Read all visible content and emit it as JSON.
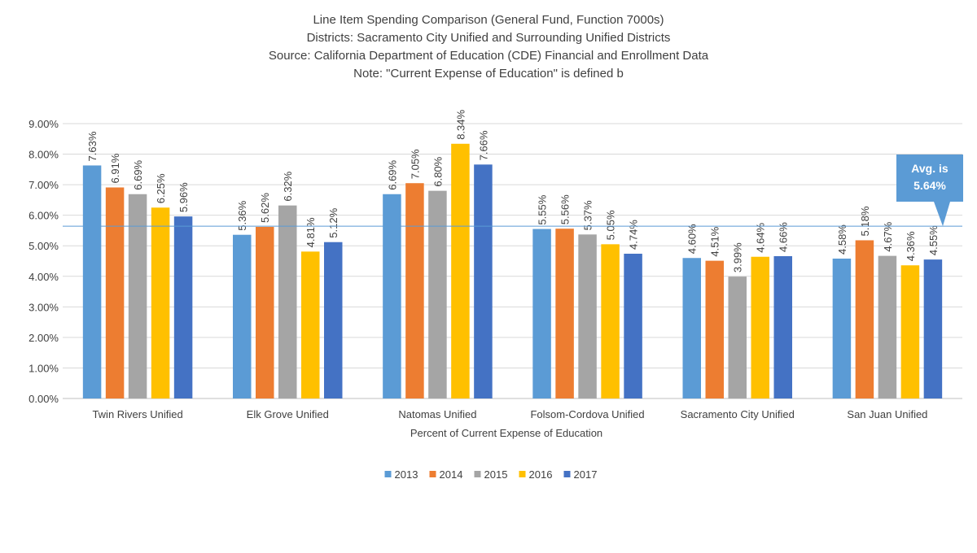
{
  "chart_data": {
    "type": "bar",
    "title_lines": [
      "Line Item Spending Comparison (General Fund, Function 7000s)",
      "Districts: Sacramento City Unified and Surrounding Unified Districts",
      "Source: California Department of Education (CDE) Financial and Enrollment Data",
      "Note: \"Current Expense of Education\" is defined b"
    ],
    "xlabel": "Percent of Current Expense of Education",
    "ylabel": "",
    "ylim": [
      0,
      9
    ],
    "yticks": [
      "0.00%",
      "1.00%",
      "2.00%",
      "3.00%",
      "4.00%",
      "5.00%",
      "6.00%",
      "7.00%",
      "8.00%",
      "9.00%"
    ],
    "grid": true,
    "legend_position": "bottom",
    "categories": [
      "Twin Rivers Unified",
      "Elk Grove Unified",
      "Natomas Unified",
      "Folsom-Cordova Unified",
      "Sacramento City Unified",
      "San Juan Unified"
    ],
    "series": [
      {
        "name": "2013",
        "color": "#5B9BD5",
        "values": [
          7.63,
          5.36,
          6.69,
          5.55,
          4.6,
          4.58
        ],
        "labels": [
          "7.63%",
          "5.36%",
          "6.69%",
          "5.55%",
          "4.60%",
          "4.58%"
        ]
      },
      {
        "name": "2014",
        "color": "#ED7D31",
        "values": [
          6.91,
          5.62,
          7.05,
          5.56,
          4.51,
          5.18
        ],
        "labels": [
          "6.91%",
          "5.62%",
          "7.05%",
          "5.56%",
          "4.51%",
          "5.18%"
        ]
      },
      {
        "name": "2015",
        "color": "#A5A5A5",
        "values": [
          6.69,
          6.32,
          6.8,
          5.37,
          3.99,
          4.67
        ],
        "labels": [
          "6.69%",
          "6.32%",
          "6.80%",
          "5.37%",
          "3.99%",
          "4.67%"
        ]
      },
      {
        "name": "2016",
        "color": "#FFC000",
        "values": [
          6.25,
          4.81,
          8.34,
          5.05,
          4.64,
          4.36
        ],
        "labels": [
          "6.25%",
          "4.81%",
          "8.34%",
          "5.05%",
          "4.64%",
          "4.36%"
        ]
      },
      {
        "name": "2017",
        "color": "#4472C4",
        "values": [
          5.96,
          5.12,
          7.66,
          4.74,
          4.66,
          4.55
        ],
        "labels": [
          "5.96%",
          "5.12%",
          "7.66%",
          "4.74%",
          "4.66%",
          "4.55%"
        ]
      }
    ],
    "average_line": {
      "value": 5.64,
      "color": "#5B9BD5",
      "callout_lines": [
        "Avg. is",
        "5.64%"
      ],
      "callout_color": "#5B9BD5",
      "callout_text_color": "#ffffff"
    },
    "gridline_color": "#D9D9D9",
    "axis_text_color": "#404040"
  }
}
